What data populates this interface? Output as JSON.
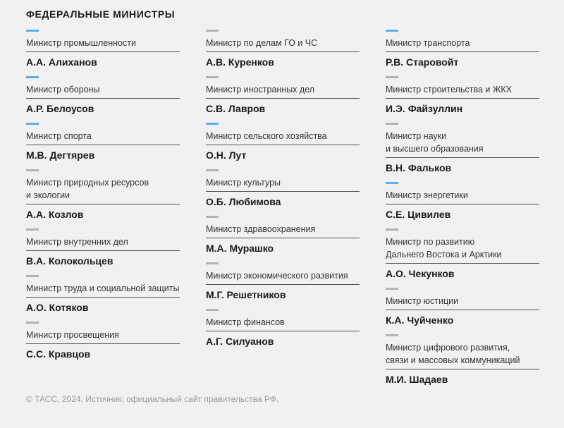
{
  "title": "ФЕДЕРАЛЬНЫЕ МИНИСТРЫ",
  "colors": {
    "accent_blue": "#5cb0ea",
    "marker_gray": "#b4b4b4"
  },
  "columns": [
    [
      {
        "role": "Министр промышленности",
        "name": "А.А. Алиханов",
        "marker": "blue"
      },
      {
        "role": "Министр обороны",
        "name": "А.Р. Белоусов",
        "marker": "blue"
      },
      {
        "role": "Министр спорта",
        "name": "М.В. Дегтярев",
        "marker": "blue"
      },
      {
        "role": "Министр природных ресурсов\nи экологии",
        "name": "А.А. Козлов",
        "marker": "gray"
      },
      {
        "role": "Министр внутренних дел",
        "name": "В.А. Колокольцев",
        "marker": "gray"
      },
      {
        "role": "Министр труда и социальной защиты",
        "name": "А.О. Котяков",
        "marker": "gray"
      },
      {
        "role": "Министр просвещения",
        "name": "С.С. Кравцов",
        "marker": "gray"
      }
    ],
    [
      {
        "role": "Министр по делам ГО и ЧС",
        "name": "А.В. Куренков",
        "marker": "gray"
      },
      {
        "role": "Министр иностранных дел",
        "name": "С.В. Лавров",
        "marker": "gray"
      },
      {
        "role": "Министр сельского хозяйства",
        "name": "О.Н. Лут",
        "marker": "blue"
      },
      {
        "role": "Министр культуры",
        "name": "О.Б. Любимова",
        "marker": "gray"
      },
      {
        "role": "Министр здравоохранения",
        "name": "М.А. Мурашко",
        "marker": "gray"
      },
      {
        "role": "Министр экономического развития",
        "name": "М.Г. Решетников",
        "marker": "gray"
      },
      {
        "role": "Министр финансов",
        "name": "А.Г. Силуанов",
        "marker": "gray"
      }
    ],
    [
      {
        "role": "Министр транспорта",
        "name": "Р.В. Старовойт",
        "marker": "blue"
      },
      {
        "role": "Министр строительства и ЖКХ",
        "name": "И.Э. Файзуллин",
        "marker": "gray"
      },
      {
        "role": "Министр науки\nи высшего образования",
        "name": "В.Н. Фальков",
        "marker": "gray"
      },
      {
        "role": "Министр энергетики",
        "name": "С.Е. Цивилев",
        "marker": "blue"
      },
      {
        "role": "Министр по развитию\nДальнего Востока и Арктики",
        "name": "А.О. Чекунков",
        "marker": "gray"
      },
      {
        "role": "Министр юстиции",
        "name": "К.А. Чуйченко",
        "marker": "gray"
      },
      {
        "role": "Министр цифрового развития,\nсвязи и массовых коммуникаций",
        "name": "М.И. Шадаев",
        "marker": "gray"
      }
    ]
  ],
  "footer": "© ТАСС, 2024. Источник: официальный сайт правительства РФ."
}
